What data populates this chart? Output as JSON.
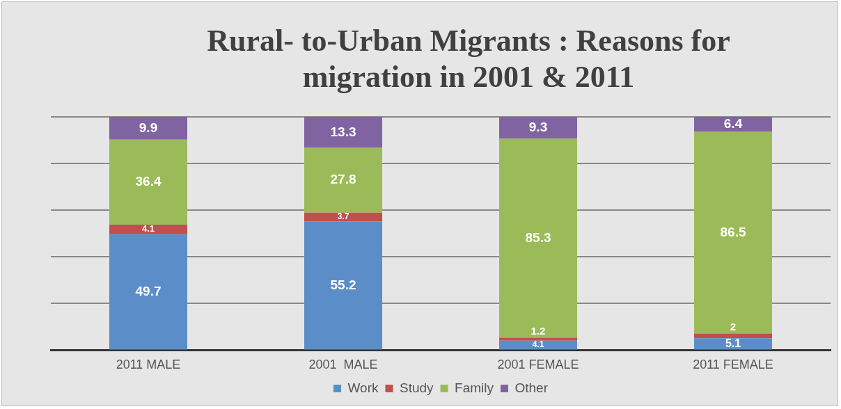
{
  "chart_data": {
    "type": "bar",
    "title": "Rural- to-Urban Migrants : Reasons for migration in 2001 & 2011",
    "categories": [
      "2011 MALE",
      "2001  MALE",
      "2001 FEMALE",
      "2011 FEMALE"
    ],
    "series": [
      {
        "name": "Work",
        "color": "#5b8ec9",
        "values": [
          49.7,
          55.2,
          4.1,
          5.1
        ]
      },
      {
        "name": "Study",
        "color": "#c0504d",
        "values": [
          4.1,
          3.7,
          1.2,
          2
        ]
      },
      {
        "name": "Family",
        "color": "#9bbb59",
        "values": [
          36.4,
          27.8,
          85.3,
          86.5
        ]
      },
      {
        "name": "Other",
        "color": "#8064a2",
        "values": [
          9.9,
          13.3,
          9.3,
          6.4
        ]
      }
    ],
    "stacked": true,
    "data_labels": true,
    "ylim": [
      0,
      100
    ],
    "yticks": [
      {
        "value": 0,
        "label": null
      },
      {
        "value": 20,
        "label": null
      },
      {
        "value": 40,
        "label": null
      },
      {
        "value": 60,
        "label": null
      },
      {
        "value": 80,
        "label": null
      },
      {
        "value": 100,
        "label": null
      }
    ],
    "grid": "y",
    "legend": "bottom",
    "tick_labels": "x"
  }
}
